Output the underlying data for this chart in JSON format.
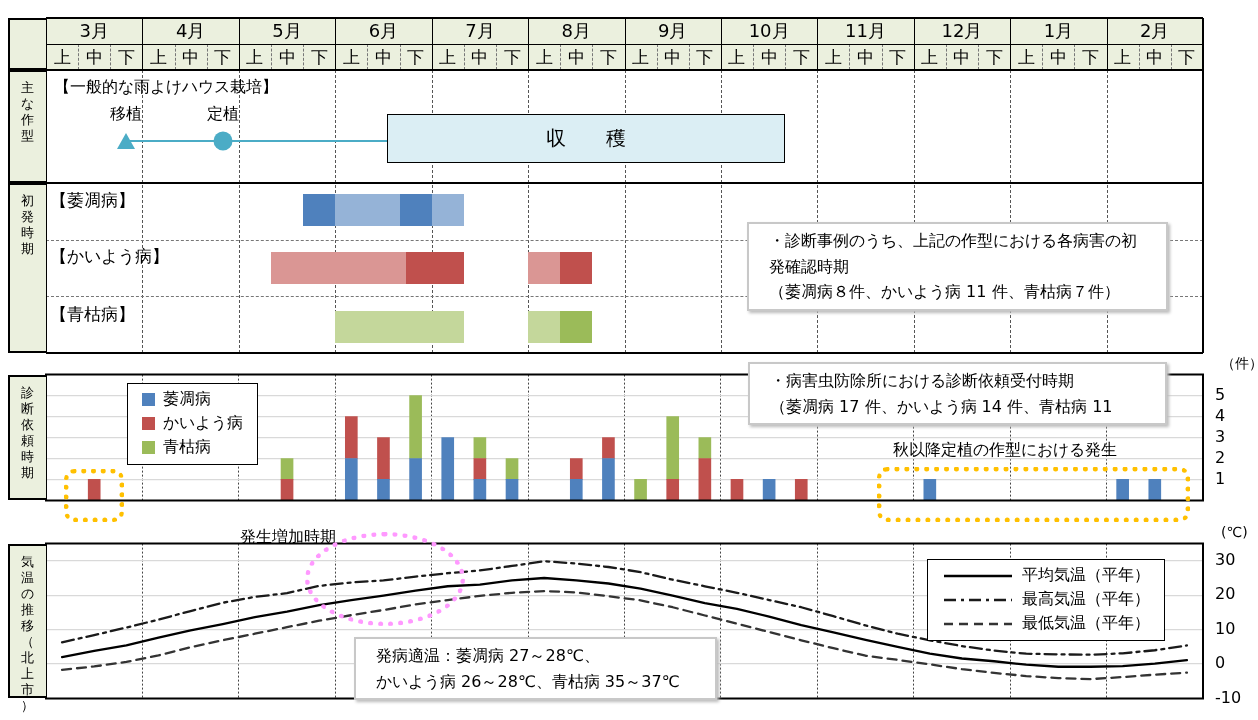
{
  "chart_data": [
    {
      "type": "other",
      "title": "【一般的な雨よけハウス栽培】",
      "ylabel": "主な作型",
      "annotations": [
        "移植",
        "定植",
        "収　　穫"
      ]
    },
    {
      "type": "other",
      "ylabel": "初発時期",
      "annotations": [
        "【萎凋病】",
        "【かいよう病】",
        "【青枯病】",
        "・診断事例のうち、上記の作型における各病害の初発確認時期",
        "（萎凋病８件、かいよう病 11 件、青枯病７件）"
      ]
    },
    {
      "type": "bar",
      "stacked": true,
      "ylabel": "診断依頼時期",
      "y2label": "（件）",
      "categories": [
        "上",
        "中",
        "下",
        "上",
        "中",
        "下",
        "上",
        "中",
        "下",
        "上",
        "中",
        "下",
        "上",
        "中",
        "下",
        "上",
        "中",
        "下",
        null,
        null,
        null,
        null,
        null,
        null,
        null,
        null,
        null,
        null,
        null,
        null,
        null,
        null,
        null,
        null,
        null,
        null
      ],
      "y2lim": [
        0,
        6
      ],
      "y2ticks": [
        1,
        2,
        3,
        4,
        5
      ],
      "grid": true,
      "legend": "top left",
      "annotations": [
        "3月",
        "4月",
        "5月",
        "6月",
        "7月",
        "8月",
        "9月",
        "10月",
        "11月",
        "12月",
        "1月",
        "2月",
        "・病害虫防除所における診断依頼受付時期",
        "（萎凋病 17 件、かいよう病 14 件、青枯病 11",
        "秋以降定植の作型における発生"
      ],
      "series": [
        {
          "name": "萎凋病",
          "color": "#4f81bd",
          "axis": "y2",
          "values": [
            null,
            null,
            null,
            null,
            null,
            null,
            null,
            null,
            null,
            2,
            1,
            2,
            3,
            1,
            1,
            null,
            1,
            2,
            null,
            null,
            null,
            null,
            1,
            null,
            null,
            null,
            null,
            1,
            null,
            null,
            null,
            null,
            null,
            1,
            1,
            null
          ]
        },
        {
          "name": "かいよう病",
          "color": "#c0504d",
          "axis": "y2",
          "values": [
            null,
            1,
            null,
            null,
            null,
            null,
            null,
            1,
            null,
            2,
            2,
            null,
            null,
            1,
            null,
            null,
            1,
            1,
            null,
            1,
            2,
            1,
            null,
            1,
            null,
            null,
            null,
            null,
            null,
            null,
            null,
            null,
            null,
            null,
            null,
            null
          ]
        },
        {
          "name": "青枯病",
          "color": "#9bbb59",
          "axis": "y2",
          "values": [
            null,
            null,
            null,
            null,
            null,
            null,
            null,
            1,
            null,
            null,
            null,
            3,
            null,
            1,
            1,
            null,
            null,
            null,
            1,
            3,
            1,
            null,
            null,
            null,
            null,
            null,
            null,
            null,
            null,
            null,
            null,
            null,
            null,
            null,
            null,
            null
          ]
        }
      ]
    },
    {
      "type": "line",
      "ylabel": "気温の推移（北上市）",
      "y2label": "(℃)",
      "categories": [
        null,
        null,
        null,
        null,
        null,
        null,
        null,
        null,
        null,
        null,
        null,
        null,
        null,
        null,
        null,
        null,
        null,
        null,
        "上",
        "中",
        "下",
        "上",
        "中",
        "下",
        "上",
        "中",
        "下",
        "上",
        "中",
        "下",
        "上",
        "中",
        "下",
        "上",
        "中",
        "下"
      ],
      "y2lim": [
        -10,
        35
      ],
      "y2ticks": [
        -10,
        0,
        10,
        20,
        30
      ],
      "grid": true,
      "legend": "top right",
      "marker": "none",
      "annotations": [
        "発生増加時期",
        "発病適温：萎凋病 27～28℃、",
        "かいよう病 26～28℃、青枯病 35～37℃"
      ],
      "series": [
        {
          "name": "平均気温（平年）",
          "color": "#000000",
          "line_style": "solid",
          "axis": "y2",
          "values": [
            2.0,
            3.8,
            5.4,
            7.7,
            9.8,
            11.6,
            13.6,
            15.2,
            17.1,
            18.6,
            19.9,
            21.3,
            22.6,
            23.1,
            24.3,
            25.0,
            24.3,
            23.4,
            21.9,
            19.9,
            17.7,
            16.0,
            13.8,
            11.3,
            9.2,
            7.0,
            5.0,
            3.0,
            1.6,
            0.8,
            -0.2,
            -0.8,
            -0.8,
            -0.6,
            0.1,
            1.1
          ]
        },
        {
          "name": "最高気温（平年）",
          "color": "#1a1a1a",
          "line_style": "dashdot",
          "axis": "y2",
          "values": [
            6.3,
            8.4,
            10.6,
            12.9,
            15.4,
            17.8,
            19.5,
            20.6,
            22.7,
            23.7,
            24.3,
            25.4,
            26.4,
            27.2,
            28.5,
            29.9,
            29.2,
            28.2,
            26.7,
            24.5,
            22.6,
            20.7,
            18.6,
            16.5,
            13.9,
            11.2,
            8.8,
            6.9,
            5.2,
            3.9,
            3.0,
            2.8,
            2.7,
            3.1,
            4.0,
            5.4
          ]
        },
        {
          "name": "最低気温（平年）",
          "color": "#333333",
          "line_style": "dashed",
          "axis": "y2",
          "values": [
            -1.7,
            -0.7,
            0.6,
            2.5,
            4.9,
            6.9,
            8.8,
            10.7,
            12.6,
            14.2,
            15.7,
            17.3,
            18.6,
            19.8,
            20.7,
            21.2,
            20.8,
            19.7,
            18.5,
            16.5,
            14.1,
            11.7,
            9.3,
            6.9,
            4.6,
            2.4,
            1.2,
            -0.1,
            -1.5,
            -2.6,
            -3.5,
            -4.1,
            -4.4,
            -3.8,
            -3.1,
            -2.5
          ]
        }
      ]
    }
  ]
}
